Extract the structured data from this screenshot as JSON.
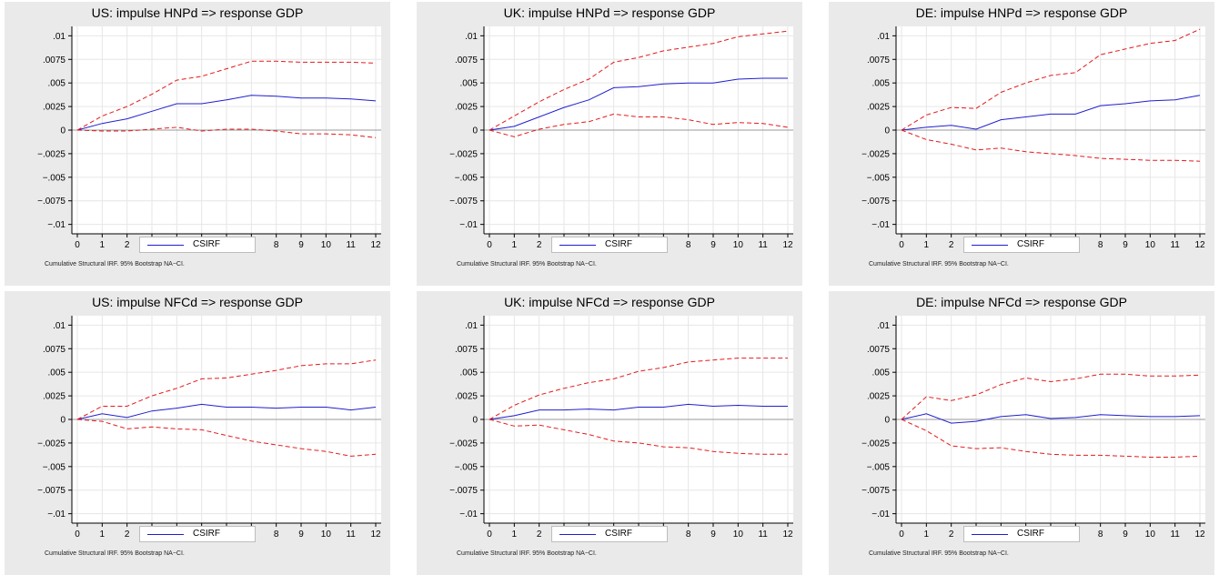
{
  "colors": {
    "panel_bg": "#eaeaea",
    "plot_bg": "#ffffff",
    "grid": "#e6e6e6",
    "zero_line": "#999999",
    "irf_line": "#1f1fcf",
    "ci_line": "#e31a1c"
  },
  "legend_label": "CSIRF",
  "footnote": "Cumulative Structural IRF. 95% Bootstrap NA−CI.",
  "chart_data": [
    {
      "type": "line",
      "title": "US: impulse HNPd => response GDP",
      "xlabel": "",
      "ylabel": "",
      "x": [
        0,
        1,
        2,
        3,
        4,
        5,
        6,
        7,
        8,
        9,
        10,
        11,
        12
      ],
      "xticks": [
        "0",
        "1",
        "2",
        "3",
        "4",
        "5",
        "6",
        "7",
        "8",
        "9",
        "10",
        "11",
        "12"
      ],
      "ylim": [
        -0.011,
        0.011
      ],
      "yticks": [
        0.01,
        0.0075,
        0.005,
        0.0025,
        0,
        -0.0025,
        -0.005,
        -0.0075,
        -0.01
      ],
      "ytick_labels": [
        ".01",
        ".0075",
        ".005",
        ".0025",
        "0",
        "−.0025",
        "−.005",
        "−.0075",
        "−.01"
      ],
      "grid": true,
      "legend_position": "bottom-center",
      "series": [
        {
          "name": "CSIRF",
          "style": "solid",
          "values": [
            0,
            0.0007,
            0.0012,
            0.002,
            0.0028,
            0.0028,
            0.0032,
            0.0037,
            0.0036,
            0.0034,
            0.0034,
            0.0033,
            0.0031
          ]
        },
        {
          "style": "dashed",
          "values": [
            0,
            0.0015,
            0.0025,
            0.0038,
            0.0053,
            0.0057,
            0.0065,
            0.0073,
            0.0073,
            0.0072,
            0.0072,
            0.0072,
            0.0071
          ]
        },
        {
          "style": "dashed",
          "values": [
            0,
            -0.0001,
            -0.0001,
            0.0001,
            0.0003,
            -0.0001,
            0.0001,
            0.0001,
            -0.0001,
            -0.0004,
            -0.0004,
            -0.0005,
            -0.0008
          ]
        }
      ]
    },
    {
      "type": "line",
      "title": "UK: impulse HNPd => response GDP",
      "xlabel": "",
      "ylabel": "",
      "x": [
        0,
        1,
        2,
        3,
        4,
        5,
        6,
        7,
        8,
        9,
        10,
        11,
        12
      ],
      "xticks": [
        "0",
        "1",
        "2",
        "3",
        "4",
        "5",
        "6",
        "7",
        "8",
        "9",
        "10",
        "11",
        "12"
      ],
      "ylim": [
        -0.011,
        0.011
      ],
      "yticks": [
        0.01,
        0.0075,
        0.005,
        0.0025,
        0,
        -0.0025,
        -0.005,
        -0.0075,
        -0.01
      ],
      "ytick_labels": [
        ".01",
        ".0075",
        ".005",
        ".0025",
        "0",
        "−.0025",
        "−.005",
        "−.0075",
        "−.01"
      ],
      "grid": true,
      "legend_position": "bottom-center",
      "series": [
        {
          "name": "CSIRF",
          "style": "solid",
          "values": [
            0,
            0.0004,
            0.0014,
            0.0024,
            0.0032,
            0.0045,
            0.0046,
            0.0049,
            0.005,
            0.005,
            0.0054,
            0.0055,
            0.0055
          ]
        },
        {
          "style": "dashed",
          "values": [
            0,
            0.0015,
            0.003,
            0.0043,
            0.0054,
            0.0072,
            0.0077,
            0.0084,
            0.0088,
            0.0092,
            0.0099,
            0.0102,
            0.0105
          ]
        },
        {
          "style": "dashed",
          "values": [
            0,
            -0.0007,
            0.0001,
            0.0006,
            0.0009,
            0.0017,
            0.0014,
            0.0014,
            0.0011,
            0.0006,
            0.0008,
            0.0007,
            0.0003
          ]
        }
      ]
    },
    {
      "type": "line",
      "title": "DE: impulse HNPd => response GDP",
      "xlabel": "",
      "ylabel": "",
      "x": [
        0,
        1,
        2,
        3,
        4,
        5,
        6,
        7,
        8,
        9,
        10,
        11,
        12
      ],
      "xticks": [
        "0",
        "1",
        "2",
        "3",
        "4",
        "5",
        "6",
        "7",
        "8",
        "9",
        "10",
        "11",
        "12"
      ],
      "ylim": [
        -0.011,
        0.011
      ],
      "yticks": [
        0.01,
        0.0075,
        0.005,
        0.0025,
        0,
        -0.0025,
        -0.005,
        -0.0075,
        -0.01
      ],
      "ytick_labels": [
        ".01",
        ".0075",
        ".005",
        ".0025",
        "0",
        "−.0025",
        "−.005",
        "−.0075",
        "−.01"
      ],
      "grid": true,
      "legend_position": "bottom-center",
      "series": [
        {
          "name": "CSIRF",
          "style": "solid",
          "values": [
            0,
            0.0003,
            0.0005,
            0.0001,
            0.0011,
            0.0014,
            0.0017,
            0.0017,
            0.0026,
            0.0028,
            0.0031,
            0.0032,
            0.0037
          ]
        },
        {
          "style": "dashed",
          "values": [
            0,
            0.0016,
            0.0024,
            0.0023,
            0.004,
            0.005,
            0.0058,
            0.0061,
            0.008,
            0.0086,
            0.0092,
            0.0095,
            0.0107
          ]
        },
        {
          "style": "dashed",
          "values": [
            0,
            -0.001,
            -0.0015,
            -0.0021,
            -0.0019,
            -0.0023,
            -0.0025,
            -0.0027,
            -0.003,
            -0.0031,
            -0.0032,
            -0.0032,
            -0.0033
          ]
        }
      ]
    },
    {
      "type": "line",
      "title": "US: impulse NFCd => response GDP",
      "xlabel": "",
      "ylabel": "",
      "x": [
        0,
        1,
        2,
        3,
        4,
        5,
        6,
        7,
        8,
        9,
        10,
        11,
        12
      ],
      "xticks": [
        "0",
        "1",
        "2",
        "3",
        "4",
        "5",
        "6",
        "7",
        "8",
        "9",
        "10",
        "11",
        "12"
      ],
      "ylim": [
        -0.011,
        0.011
      ],
      "yticks": [
        0.01,
        0.0075,
        0.005,
        0.0025,
        0,
        -0.0025,
        -0.005,
        -0.0075,
        -0.01
      ],
      "ytick_labels": [
        ".01",
        ".0075",
        ".005",
        ".0025",
        "0",
        "−.0025",
        "−.005",
        "−.0075",
        "−.01"
      ],
      "grid": true,
      "legend_position": "bottom-center",
      "series": [
        {
          "name": "CSIRF",
          "style": "solid",
          "values": [
            0,
            0.0006,
            0.0002,
            0.0009,
            0.0012,
            0.0016,
            0.0013,
            0.0013,
            0.0012,
            0.0013,
            0.0013,
            0.001,
            0.0013
          ]
        },
        {
          "style": "dashed",
          "values": [
            0,
            0.0014,
            0.0014,
            0.0025,
            0.0033,
            0.0043,
            0.0044,
            0.0048,
            0.0052,
            0.0057,
            0.0059,
            0.0059,
            0.0063
          ]
        },
        {
          "style": "dashed",
          "values": [
            0,
            -0.0002,
            -0.001,
            -0.0008,
            -0.001,
            -0.0011,
            -0.0017,
            -0.0023,
            -0.0027,
            -0.0031,
            -0.0034,
            -0.0039,
            -0.0037
          ]
        }
      ]
    },
    {
      "type": "line",
      "title": "UK: impulse NFCd => response GDP",
      "xlabel": "",
      "ylabel": "",
      "x": [
        0,
        1,
        2,
        3,
        4,
        5,
        6,
        7,
        8,
        9,
        10,
        11,
        12
      ],
      "xticks": [
        "0",
        "1",
        "2",
        "3",
        "4",
        "5",
        "6",
        "7",
        "8",
        "9",
        "10",
        "11",
        "12"
      ],
      "ylim": [
        -0.011,
        0.011
      ],
      "yticks": [
        0.01,
        0.0075,
        0.005,
        0.0025,
        0,
        -0.0025,
        -0.005,
        -0.0075,
        -0.01
      ],
      "ytick_labels": [
        ".01",
        ".0075",
        ".005",
        ".0025",
        "0",
        "−.0025",
        "−.005",
        "−.0075",
        "−.01"
      ],
      "grid": true,
      "legend_position": "bottom-center",
      "series": [
        {
          "name": "CSIRF",
          "style": "solid",
          "values": [
            0,
            0.0004,
            0.001,
            0.001,
            0.0011,
            0.001,
            0.0013,
            0.0013,
            0.0016,
            0.0014,
            0.0015,
            0.0014,
            0.0014
          ]
        },
        {
          "style": "dashed",
          "values": [
            0,
            0.0015,
            0.0026,
            0.0033,
            0.0039,
            0.0043,
            0.0051,
            0.0055,
            0.0061,
            0.0063,
            0.0065,
            0.0065,
            0.0065
          ]
        },
        {
          "style": "dashed",
          "values": [
            0,
            -0.0007,
            -0.0006,
            -0.0011,
            -0.0016,
            -0.0023,
            -0.0025,
            -0.0029,
            -0.003,
            -0.0034,
            -0.0036,
            -0.0037,
            -0.0037
          ]
        }
      ]
    },
    {
      "type": "line",
      "title": "DE: impulse NFCd => response GDP",
      "xlabel": "",
      "ylabel": "",
      "x": [
        0,
        1,
        2,
        3,
        4,
        5,
        6,
        7,
        8,
        9,
        10,
        11,
        12
      ],
      "xticks": [
        "0",
        "1",
        "2",
        "3",
        "4",
        "5",
        "6",
        "7",
        "8",
        "9",
        "10",
        "11",
        "12"
      ],
      "ylim": [
        -0.011,
        0.011
      ],
      "yticks": [
        0.01,
        0.0075,
        0.005,
        0.0025,
        0,
        -0.0025,
        -0.005,
        -0.0075,
        -0.01
      ],
      "ytick_labels": [
        ".01",
        ".0075",
        ".005",
        ".0025",
        "0",
        "−.0025",
        "−.005",
        "−.0075",
        "−.01"
      ],
      "grid": true,
      "legend_position": "bottom-center",
      "series": [
        {
          "name": "CSIRF",
          "style": "solid",
          "values": [
            0,
            0.0006,
            -0.0004,
            -0.0002,
            0.0003,
            0.0005,
            0.0001,
            0.0002,
            0.0005,
            0.0004,
            0.0003,
            0.0003,
            0.0004
          ]
        },
        {
          "style": "dashed",
          "values": [
            0,
            0.0024,
            0.002,
            0.0026,
            0.0037,
            0.0044,
            0.004,
            0.0043,
            0.0048,
            0.0048,
            0.0046,
            0.0046,
            0.0047
          ]
        },
        {
          "style": "dashed",
          "values": [
            0,
            -0.0012,
            -0.0028,
            -0.0031,
            -0.003,
            -0.0034,
            -0.0037,
            -0.0038,
            -0.0038,
            -0.0039,
            -0.004,
            -0.004,
            -0.0039
          ]
        }
      ]
    }
  ]
}
